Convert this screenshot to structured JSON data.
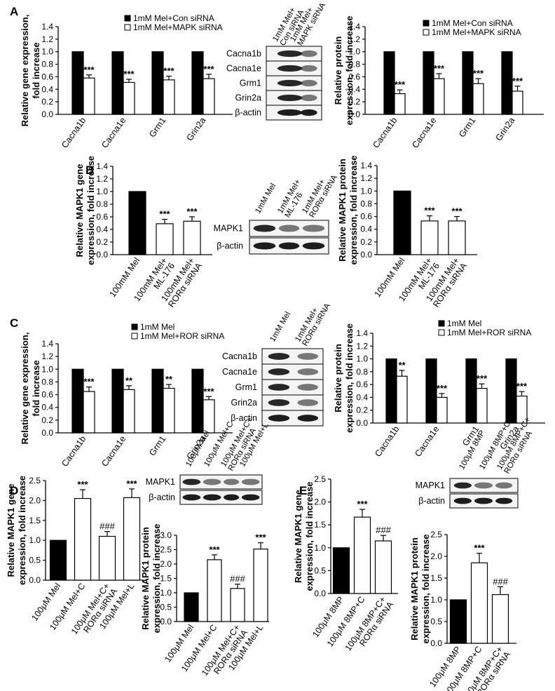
{
  "panel_labels": [
    "A",
    "B",
    "C",
    "D",
    "E"
  ],
  "chart_data": [
    {
      "id": "A1",
      "type": "bar",
      "ylabel": [
        "Relative gene expression,",
        "fold increase"
      ],
      "ylim": [
        0,
        1.4
      ],
      "yticks": [
        "0.0",
        "0.2",
        "0.4",
        "0.6",
        "0.8",
        "1.0",
        "1.2",
        "1.4"
      ],
      "categories": [
        "Cacna1b",
        "Cacna1e",
        "Grm1",
        "Grin2a"
      ],
      "series": [
        {
          "name": "1mM Mel+Con siRNA",
          "values": [
            1.0,
            1.0,
            1.0,
            1.0
          ]
        },
        {
          "name": "1mM Mel+MAPK siRNA",
          "values": [
            0.58,
            0.51,
            0.55,
            0.57
          ],
          "errors": [
            0.05,
            0.05,
            0.06,
            0.07
          ]
        }
      ],
      "annotations": [
        {
          "category": 0,
          "series": 1,
          "text": "***"
        },
        {
          "category": 1,
          "series": 1,
          "text": "***"
        },
        {
          "category": 2,
          "series": 1,
          "text": "***"
        },
        {
          "category": 3,
          "series": 1,
          "text": "***"
        }
      ]
    },
    {
      "id": "A2",
      "type": "bar",
      "ylabel": [
        "Relative protein",
        "expression, fold increase"
      ],
      "ylim": [
        0,
        1.4
      ],
      "yticks": [
        "0.0",
        "0.2",
        "0.4",
        "0.6",
        "0.8",
        "1.0",
        "1.2",
        "1.4"
      ],
      "categories": [
        "Cacna1b",
        "Cacna1e",
        "Grm1",
        "Grin2a"
      ],
      "series": [
        {
          "name": "1mM Mel+Con siRNA",
          "values": [
            1.0,
            1.0,
            1.0,
            1.0
          ]
        },
        {
          "name": "1mM Mel+MAPK siRNA",
          "values": [
            0.33,
            0.57,
            0.49,
            0.37
          ],
          "errors": [
            0.06,
            0.08,
            0.08,
            0.08
          ]
        }
      ],
      "annotations": [
        {
          "category": 0,
          "series": 1,
          "text": "***"
        },
        {
          "category": 1,
          "series": 1,
          "text": "***"
        },
        {
          "category": 2,
          "series": 1,
          "text": "***"
        },
        {
          "category": 3,
          "series": 1,
          "text": "***"
        }
      ]
    },
    {
      "id": "B1",
      "type": "bar",
      "ylabel": [
        "Relative MAPK1 gene",
        "expression, fold increase"
      ],
      "ylim": [
        0,
        1.4
      ],
      "yticks": [
        "0.0",
        "0.2",
        "0.4",
        "0.6",
        "0.8",
        "1.0",
        "1.2",
        "1.4"
      ],
      "categories": [
        "100mM Mel",
        "100mM Mel+\nML-176",
        "100mM Mel+\nRORα siRNA"
      ],
      "values": [
        1.0,
        0.49,
        0.53
      ],
      "errors": [
        0,
        0.07,
        0.07
      ],
      "fills": [
        "black",
        "white",
        "white"
      ],
      "annotations": [
        "",
        "***",
        "***"
      ]
    },
    {
      "id": "B2",
      "type": "bar",
      "ylabel": [
        "Relative MAPK1 protein",
        "expression, fold increase"
      ],
      "ylim": [
        0,
        1.4
      ],
      "yticks": [
        "0.0",
        "0.2",
        "0.4",
        "0.6",
        "0.8",
        "1.0",
        "1.2",
        "1.4"
      ],
      "categories": [
        "100mM Mel",
        "100mM Mel+\nML-176",
        "100mM Mel+\nRORα siRNA"
      ],
      "values": [
        1.0,
        0.53,
        0.53
      ],
      "errors": [
        0,
        0.08,
        0.07
      ],
      "fills": [
        "black",
        "white",
        "white"
      ],
      "annotations": [
        "",
        "***",
        "***"
      ]
    },
    {
      "id": "C1",
      "type": "bar",
      "ylabel": [
        "Relative gene expression,",
        "fold increase"
      ],
      "ylim": [
        0,
        1.4
      ],
      "yticks": [
        "0.0",
        "0.2",
        "0.4",
        "0.6",
        "0.8",
        "1.0",
        "1.2",
        "1.4"
      ],
      "categories": [
        "Cacna1b",
        "Cacna1e",
        "Grm1",
        "Grin2a"
      ],
      "series": [
        {
          "name": "1mM Mel",
          "values": [
            1.0,
            1.0,
            1.0,
            1.0
          ]
        },
        {
          "name": "1mM Mel+ROR siRNA",
          "values": [
            0.65,
            0.68,
            0.7,
            0.52
          ],
          "errors": [
            0.07,
            0.06,
            0.06,
            0.05
          ]
        }
      ],
      "annotations": [
        {
          "category": 0,
          "series": 1,
          "text": "***"
        },
        {
          "category": 1,
          "series": 1,
          "text": "**"
        },
        {
          "category": 2,
          "series": 1,
          "text": "**"
        },
        {
          "category": 3,
          "series": 1,
          "text": "***"
        }
      ]
    },
    {
      "id": "C2",
      "type": "bar",
      "ylabel": [
        "Relative protein",
        "expression, fold increase"
      ],
      "ylim": [
        0,
        1.4
      ],
      "yticks": [
        "0.0",
        "0.2",
        "0.4",
        "0.6",
        "0.8",
        "1.0",
        "1.2",
        "1.4"
      ],
      "categories": [
        "Cacna1b",
        "Cacna1e",
        "Grm1",
        "Grin2a"
      ],
      "series": [
        {
          "name": "1mM Mel",
          "values": [
            1.0,
            1.0,
            1.0,
            1.0
          ]
        },
        {
          "name": "1mM Mel+ROR siRNA",
          "values": [
            0.73,
            0.4,
            0.54,
            0.42
          ],
          "errors": [
            0.09,
            0.06,
            0.07,
            0.07
          ]
        }
      ],
      "annotations": [
        {
          "category": 0,
          "series": 1,
          "text": "**"
        },
        {
          "category": 1,
          "series": 1,
          "text": "***"
        },
        {
          "category": 2,
          "series": 1,
          "text": "***"
        },
        {
          "category": 3,
          "series": 1,
          "text": "***"
        }
      ]
    },
    {
      "id": "D1",
      "type": "bar",
      "ylabel": [
        "Relative MAPK1 gene",
        "expression, fold increase"
      ],
      "ylim": [
        0,
        2.5
      ],
      "yticks": [
        "0.0",
        "0.5",
        "1.0",
        "1.5",
        "2.0",
        "2.5"
      ],
      "categories": [
        "100μM Mel",
        "100μM Mel+C",
        "100μM Mel+C+\nRORα siRNA",
        "100μM Mel+L"
      ],
      "values": [
        1.0,
        2.05,
        1.1,
        2.07
      ],
      "errors": [
        0,
        0.22,
        0.12,
        0.22
      ],
      "fills": [
        "black",
        "white",
        "white",
        "white"
      ],
      "annotations": [
        "",
        "***",
        "###",
        "***"
      ]
    },
    {
      "id": "D2",
      "type": "bar",
      "ylabel": [
        "Relative MAPK1 protein",
        "expression, fold increase"
      ],
      "ylim": [
        0,
        3.0
      ],
      "yticks": [
        "0.0",
        "0.5",
        "1.0",
        "1.5",
        "2.0",
        "2.5",
        "3.0"
      ],
      "categories": [
        "100μM Mel",
        "100μM Mel+C",
        "100μM Mel+C+\nRORα siRNA",
        "100μM Mel+L"
      ],
      "values": [
        1.0,
        2.15,
        1.15,
        2.52
      ],
      "errors": [
        0,
        0.17,
        0.15,
        0.22
      ],
      "fills": [
        "black",
        "white",
        "white",
        "white"
      ],
      "annotations": [
        "",
        "***",
        "###",
        "***"
      ]
    },
    {
      "id": "E1",
      "type": "bar",
      "ylabel": [
        "Relative MAPK1 gene",
        "expression, fold increase"
      ],
      "ylim": [
        0,
        2.5
      ],
      "yticks": [
        "0.0",
        "0.5",
        "1.0",
        "1.5",
        "2.0",
        "2.5"
      ],
      "categories": [
        "100μM 8MP",
        "100μM 8MP+C",
        "100μM 8MP+C+\nRORα siRNA"
      ],
      "values": [
        1.0,
        1.67,
        1.15
      ],
      "errors": [
        0,
        0.17,
        0.12
      ],
      "fills": [
        "black",
        "white",
        "white"
      ],
      "annotations": [
        "",
        "***",
        "###"
      ]
    },
    {
      "id": "E2",
      "type": "bar",
      "ylabel": [
        "Relative MAPK1 protein",
        "expression, fold increase"
      ],
      "ylim": [
        0,
        2.5
      ],
      "yticks": [
        "0.0",
        "0.5",
        "1.0",
        "1.5",
        "2.0",
        "2.5"
      ],
      "categories": [
        "100μM 8MP",
        "100μM 8MP+C",
        "100μM 8MP+C+\nRORα siRNA"
      ],
      "values": [
        1.0,
        1.85,
        1.12
      ],
      "errors": [
        0,
        0.22,
        0.18
      ],
      "fills": [
        "black",
        "white",
        "white"
      ],
      "annotations": [
        "",
        "***",
        "###"
      ]
    }
  ],
  "blots": {
    "A": {
      "lanes": [
        "1mM Mel+\nCon siRNA",
        "1mM Mel+\nMAPK siRNA"
      ],
      "rows": [
        "Cacna1b",
        "Cacna1e",
        "Grm1",
        "Grin2a",
        "β-actin"
      ]
    },
    "B": {
      "lanes": [
        "1mM Mel",
        "1mM Mel+\nML-176",
        "1mM Mel+\nRORα siRNA"
      ],
      "rows": [
        "MAPK1",
        "β-actin"
      ]
    },
    "C": {
      "lanes": [
        "1mM Mel",
        "1mM Mel+\nRORα siRNA"
      ],
      "rows": [
        "Cacna1b",
        "Cacna1e",
        "Grm1",
        "Grin2a",
        "β-actin"
      ]
    },
    "D": {
      "lanes": [
        "100μM Mel",
        "100μM Mel+C",
        "100μM Mel+C+\nRORα siRNA",
        "100μM Mel+L"
      ],
      "rows": [
        "MAPK1",
        "β-actin"
      ]
    },
    "E": {
      "lanes": [
        "100μM 8MP",
        "100μM 8MP+C",
        "100μM 8MP+C+\nRORα siRNA"
      ],
      "rows": [
        "MAPK1",
        "β-actin"
      ]
    }
  }
}
